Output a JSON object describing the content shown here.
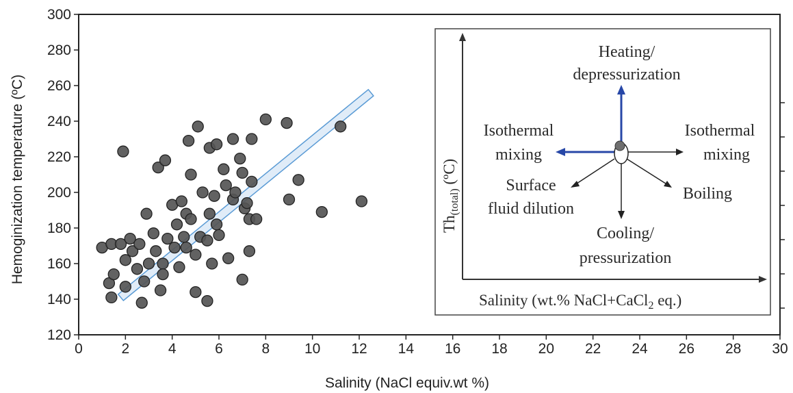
{
  "chart_data": {
    "type": "scatter",
    "xlabel": "Salinity (NaCl equiv.wt %)",
    "ylabel": "Hemoginization temperature (ºC)",
    "xlim": [
      0,
      30
    ],
    "ylim": [
      120,
      300
    ],
    "xticks": [
      0,
      2,
      4,
      6,
      8,
      10,
      12,
      14,
      16,
      18,
      20,
      22,
      24,
      26,
      28,
      30
    ],
    "yticks": [
      120,
      140,
      160,
      180,
      200,
      220,
      240,
      260,
      280,
      300
    ],
    "grid": false,
    "marker_color": "#555555",
    "trend_band": {
      "color": "#5a9bd5",
      "fill": "#dbe9f7",
      "from": [
        1.8,
        141
      ],
      "to": [
        12.5,
        256
      ]
    },
    "series": [
      {
        "points": [
          [
            1.0,
            169
          ],
          [
            1.3,
            149
          ],
          [
            1.4,
            171
          ],
          [
            1.4,
            141
          ],
          [
            1.5,
            154
          ],
          [
            1.8,
            171
          ],
          [
            1.9,
            223
          ],
          [
            2.0,
            162
          ],
          [
            2.0,
            147
          ],
          [
            2.2,
            174
          ],
          [
            2.3,
            167
          ],
          [
            2.5,
            157
          ],
          [
            2.6,
            171
          ],
          [
            2.7,
            138
          ],
          [
            2.8,
            150
          ],
          [
            2.9,
            188
          ],
          [
            3.0,
            160
          ],
          [
            3.2,
            177
          ],
          [
            3.3,
            167
          ],
          [
            3.4,
            214
          ],
          [
            3.5,
            145
          ],
          [
            3.6,
            160
          ],
          [
            3.6,
            154
          ],
          [
            3.7,
            218
          ],
          [
            3.8,
            174
          ],
          [
            4.0,
            193
          ],
          [
            4.1,
            169
          ],
          [
            4.2,
            182
          ],
          [
            4.3,
            158
          ],
          [
            4.4,
            195
          ],
          [
            4.5,
            175
          ],
          [
            4.6,
            169
          ],
          [
            4.6,
            188
          ],
          [
            4.7,
            229
          ],
          [
            4.8,
            210
          ],
          [
            4.8,
            185
          ],
          [
            5.0,
            144
          ],
          [
            5.0,
            165
          ],
          [
            5.1,
            237
          ],
          [
            5.2,
            175
          ],
          [
            5.3,
            200
          ],
          [
            5.5,
            173
          ],
          [
            5.5,
            139
          ],
          [
            5.6,
            188
          ],
          [
            5.6,
            225
          ],
          [
            5.7,
            160
          ],
          [
            5.8,
            198
          ],
          [
            5.9,
            182
          ],
          [
            5.9,
            227
          ],
          [
            6.0,
            176
          ],
          [
            6.2,
            213
          ],
          [
            6.3,
            204
          ],
          [
            6.4,
            163
          ],
          [
            6.6,
            230
          ],
          [
            6.6,
            196
          ],
          [
            6.7,
            200
          ],
          [
            6.9,
            219
          ],
          [
            7.0,
            211
          ],
          [
            7.0,
            151
          ],
          [
            7.1,
            191
          ],
          [
            7.2,
            194
          ],
          [
            7.3,
            185
          ],
          [
            7.3,
            167
          ],
          [
            7.4,
            230
          ],
          [
            7.4,
            206
          ],
          [
            7.6,
            185
          ],
          [
            8.0,
            241
          ],
          [
            8.9,
            239
          ],
          [
            9.0,
            196
          ],
          [
            9.4,
            207
          ],
          [
            10.4,
            189
          ],
          [
            11.2,
            237
          ],
          [
            12.1,
            195
          ]
        ]
      }
    ],
    "inset": {
      "y_axis_label": "Th",
      "y_axis_sub": "(total)",
      "y_axis_unit": " (ºC)",
      "x_axis_label_pre": "Salinity (wt.% NaCl+CaCl",
      "x_axis_sub": "2",
      "x_axis_label_post": " eq.)",
      "arrow_blue": "#2747a7",
      "labels": {
        "heating_1": "Heating/",
        "heating_2": "depressurization",
        "iso_left_1": "Isothermal",
        "iso_left_2": "mixing",
        "iso_right_1": "Isothermal",
        "iso_right_2": "mixing",
        "surface_1": "Surface",
        "surface_2": "fluid dilution",
        "boiling": "Boiling",
        "cooling_1": "Cooling/",
        "cooling_2": "pressurization"
      }
    }
  }
}
